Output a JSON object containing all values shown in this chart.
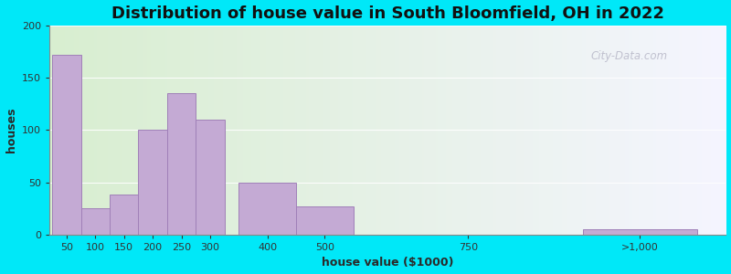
{
  "title": "Distribution of house value in South Bloomfield, OH in 2022",
  "xlabel": "house value ($1000)",
  "ylabel": "houses",
  "bar_color": "#c4aad4",
  "bar_edgecolor": "#a080b8",
  "background_outer": "#00e8f8",
  "ylim": [
    0,
    200
  ],
  "yticks": [
    0,
    50,
    100,
    150,
    200
  ],
  "categories": [
    "50",
    "100",
    "150",
    "200",
    "250",
    "300",
    "400",
    "500",
    "750",
    ">1,000"
  ],
  "values": [
    172,
    25,
    38,
    100,
    135,
    110,
    50,
    27,
    0,
    5
  ],
  "watermark": "City-Data.com",
  "title_fontsize": 13,
  "axis_label_fontsize": 9
}
